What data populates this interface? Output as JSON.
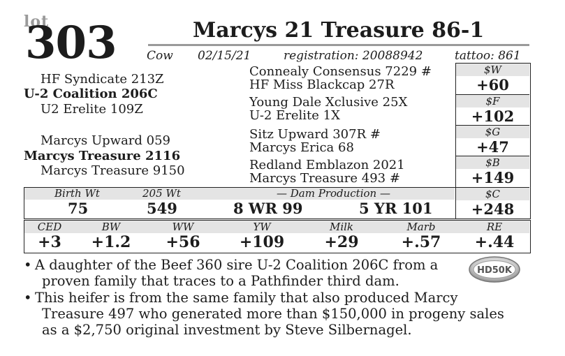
{
  "header": {
    "lot_label": "lot",
    "lot_number": "303",
    "title": "Marcys 21 Treasure 86-1",
    "sex": "Cow",
    "birth_date": "02/15/21",
    "registration": "registration: 20088942",
    "tattoo": "tattoo: 861"
  },
  "pedigree": {
    "sire_sire": "HF Syndicate 213Z",
    "sire": "U-2 Coalition 206C",
    "sire_dam": "U2 Erelite 109Z",
    "dam_sire": "Marcys Upward 059",
    "dam": "Marcys Treasure 2116",
    "dam_dam": "Marcys Treasure 9150",
    "mid": [
      "Connealy Consensus 7229 #",
      "HF Miss Blackcap 27R",
      "Young Dale Xclusive 25X",
      "U-2 Erelite 1X",
      "Sitz Upward 307R #",
      "Marcys Erica 68",
      "Redland Emblazon 2021",
      "Marcys Treasure 493 #"
    ]
  },
  "indexes": [
    {
      "label": "$W",
      "value": "+60"
    },
    {
      "label": "$F",
      "value": "+102"
    },
    {
      "label": "$G",
      "value": "+47"
    },
    {
      "label": "$B",
      "value": "+149"
    },
    {
      "label": "$C",
      "value": "+248"
    }
  ],
  "production": {
    "birth_wt_label": "Birth Wt",
    "birth_wt": "75",
    "wt205_label": "205 Wt",
    "wt205": "549",
    "dam_production_label": "— Dam Production —",
    "dam_prod_1": "8 WR 99",
    "dam_prod_2": "5 YR 101"
  },
  "epds": [
    {
      "label": "CED",
      "value": "+3"
    },
    {
      "label": "BW",
      "value": "+1.2"
    },
    {
      "label": "WW",
      "value": "+56"
    },
    {
      "label": "YW",
      "value": "+109"
    },
    {
      "label": "Milk",
      "value": "+29"
    },
    {
      "label": "Marb",
      "value": "+.57"
    },
    {
      "label": "RE",
      "value": "+.44"
    }
  ],
  "notes": {
    "bullet": "•",
    "note1_line1": "A daughter of the Beef 360 sire U-2 Coalition 206C from a",
    "note1_line2": "proven family that traces to a Pathfinder third dam.",
    "note2_line1": "This heifer is from the same family that also produced Marcy",
    "note2_line2": "Treasure 497 who generated more than $150,000 in progeny sales",
    "note2_line3": "as a $2,750 original investment by Steve Silbernagel."
  },
  "logo": {
    "text": "HD50K"
  },
  "colors": {
    "text": "#1c1c1c",
    "shade": "#e4e4e4",
    "rule": "#9a9a9a"
  }
}
